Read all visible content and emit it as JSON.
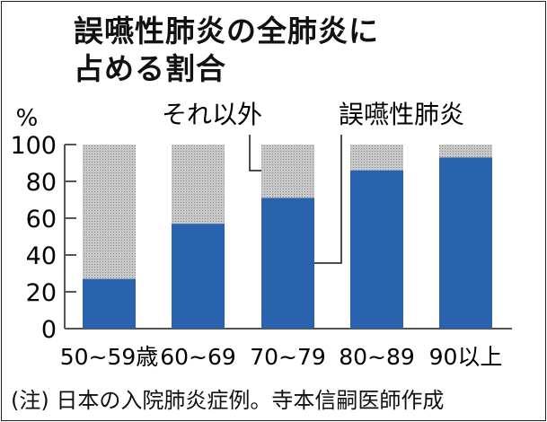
{
  "chart_data": {
    "type": "bar",
    "stacked": true,
    "title": [
      "誤嚥性肺炎の全肺炎に",
      "占める割合"
    ],
    "ylabel": "%",
    "ylim": [
      0,
      100
    ],
    "yticks": [
      "0",
      "20",
      "40",
      "60",
      "80",
      "100"
    ],
    "categories": [
      "50~59歳",
      "60~69",
      "70~79",
      "80~89",
      "90以上"
    ],
    "series": [
      {
        "name": "誤嚥性肺炎",
        "values": [
          27,
          57,
          71,
          86,
          93
        ],
        "color": "#2a63ad"
      },
      {
        "name": "それ以外",
        "values": [
          73,
          43,
          29,
          14,
          7
        ],
        "color": "#bdbdbd"
      }
    ],
    "note": "(注) 日本の入院肺炎症例。寺本信嗣医師作成"
  }
}
